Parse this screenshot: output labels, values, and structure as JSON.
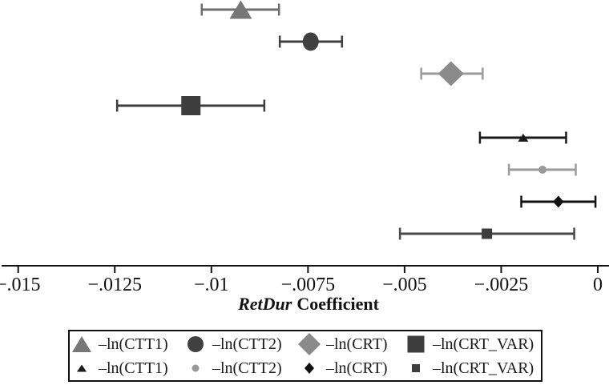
{
  "chart_data": {
    "type": "scatter",
    "subtype": "coefficient-plot-with-ci",
    "xlabel_italic": "RetDur",
    "xlabel_rest": "Coefficient",
    "xlim": [
      -0.015,
      0
    ],
    "x_ticks": [
      -0.015,
      -0.0125,
      -0.01,
      -0.0075,
      -0.005,
      -0.0025,
      0
    ],
    "x_tick_labels": [
      "−.015",
      "−.0125",
      "−.01",
      "−.0075",
      "−.005",
      "−.0025",
      "0"
    ],
    "grid": false,
    "legend_position": "bottom",
    "axis_color": "#111111",
    "series": [
      {
        "label": "–ln(CTT1)",
        "marker": "triangle",
        "size": "large",
        "color": "#777777",
        "bar_color": "#6f6f6f",
        "value": -0.00924,
        "ci": [
          -0.01025,
          -0.00825
        ]
      },
      {
        "label": "–ln(CTT2)",
        "marker": "circle",
        "size": "large",
        "color": "#404040",
        "bar_color": "#404040",
        "value": -0.00743,
        "ci": [
          -0.00823,
          -0.00662
        ]
      },
      {
        "label": "–ln(CRT)",
        "marker": "diamond",
        "size": "large",
        "color": "#8a8a8a",
        "bar_color": "#9b9b9b",
        "value": -0.0038,
        "ci": [
          -0.00457,
          -0.00298
        ]
      },
      {
        "label": "–ln(CRT_VAR)",
        "marker": "square",
        "size": "large",
        "color": "#3d3d3d",
        "bar_color": "#3d3d3d",
        "value": -0.01053,
        "ci": [
          -0.01244,
          -0.00863
        ]
      },
      {
        "label": "–ln(CTT1)",
        "marker": "triangle",
        "size": "small",
        "color": "#1a1a1a",
        "bar_color": "#1a1a1a",
        "value": -0.00193,
        "ci": [
          -0.00305,
          -0.00082
        ]
      },
      {
        "label": "–ln(CTT2)",
        "marker": "circle",
        "size": "small",
        "color": "#999999",
        "bar_color": "#9b9b9b",
        "value": -0.00143,
        "ci": [
          -0.0023,
          -0.00057
        ]
      },
      {
        "label": "–ln(CRT)",
        "marker": "diamond",
        "size": "small",
        "color": "#111111",
        "bar_color": "#111111",
        "value": -0.00102,
        "ci": [
          -0.00198,
          -6e-05
        ]
      },
      {
        "label": "–ln(CRT_VAR)",
        "marker": "square",
        "size": "small",
        "color": "#3d3d3d",
        "bar_color": "#4a4a4a",
        "value": -0.00287,
        "ci": [
          -0.00512,
          -0.00061
        ]
      }
    ]
  }
}
